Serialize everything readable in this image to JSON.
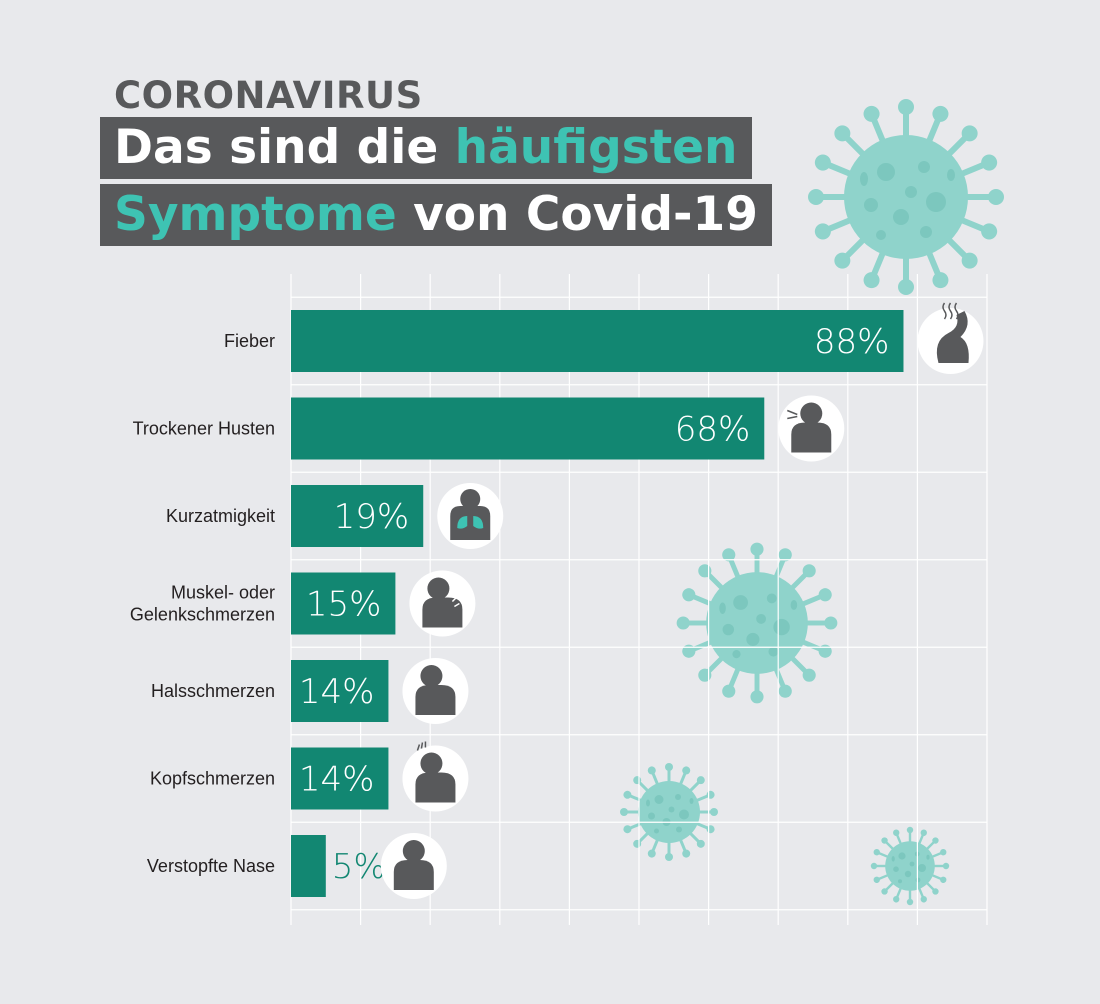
{
  "kicker": "CORONAVIRUS",
  "headline": {
    "line1_plain": "Das sind die ",
    "line1_accent": "häufigsten",
    "line2_accent": "Symptome",
    "line2_plain": " von Covid-19"
  },
  "colors": {
    "background": "#e8e9ec",
    "bar": "#128772",
    "accent": "#3ec3b3",
    "title_box": "#58595b",
    "icon_figure": "#58595b",
    "virus": "#8fd3cb"
  },
  "chart_data": {
    "type": "bar",
    "orientation": "horizontal",
    "categories": [
      "Fieber",
      "Trockener Husten",
      "Kurzatmigkeit",
      "Muskel- oder\nGelenkschmerzen",
      "Halsschmerzen",
      "Kopfschmerzen",
      "Verstopfte Nase"
    ],
    "values": [
      88,
      68,
      19,
      15,
      14,
      14,
      5
    ],
    "value_labels": [
      "88%",
      "68%",
      "19%",
      "15%",
      "14%",
      "14%",
      "5%"
    ],
    "icons": [
      "fever-icon",
      "cough-icon",
      "lungs-icon",
      "joint-pain-icon",
      "sore-throat-icon",
      "headache-icon",
      "stuffy-nose-icon"
    ],
    "xlim": [
      0,
      100
    ],
    "grid": true,
    "title": "",
    "xlabel": "",
    "ylabel": ""
  }
}
